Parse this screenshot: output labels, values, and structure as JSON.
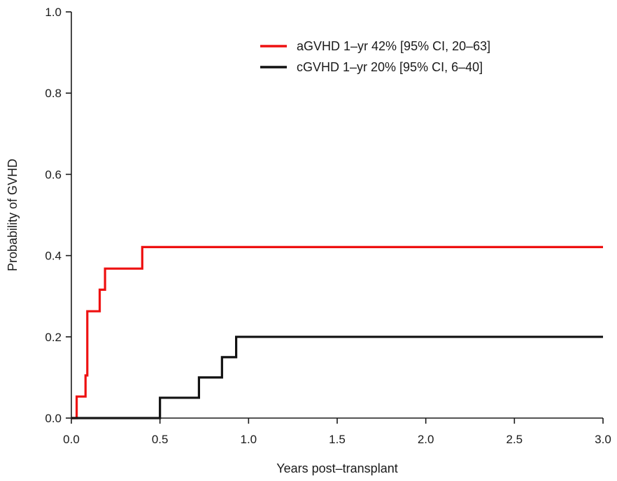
{
  "chart_data": {
    "type": "line",
    "title": "",
    "xlabel": "Years post–transplant",
    "ylabel": "Probability of GVHD",
    "xlim": [
      0,
      3
    ],
    "ylim": [
      0,
      1
    ],
    "x_ticks": [
      {
        "value": 0,
        "label": "0.0"
      },
      {
        "value": 0.5,
        "label": "0.5"
      },
      {
        "value": 1,
        "label": "1.0"
      },
      {
        "value": 1.5,
        "label": "1.5"
      },
      {
        "value": 2,
        "label": "2.0"
      },
      {
        "value": 2.5,
        "label": "2.5"
      },
      {
        "value": 3,
        "label": "3.0"
      }
    ],
    "y_ticks": [
      {
        "value": 0,
        "label": "0.0"
      },
      {
        "value": 0.2,
        "label": "0.2"
      },
      {
        "value": 0.4,
        "label": "0.4"
      },
      {
        "value": 0.6,
        "label": "0.6"
      },
      {
        "value": 0.8,
        "label": "0.8"
      },
      {
        "value": 1.0,
        "label": "1.0"
      }
    ],
    "grid": false,
    "legend_position": "top-right",
    "step": true,
    "series": [
      {
        "name": "aGVHD 1–yr 42% [95% CI, 20–63]",
        "color": "#ee1111",
        "x": [
          0.0,
          0.03,
          0.08,
          0.09,
          0.16,
          0.19,
          0.4,
          3.0
        ],
        "y": [
          0.0,
          0.053,
          0.105,
          0.263,
          0.316,
          0.368,
          0.421,
          0.421
        ]
      },
      {
        "name": "cGVHD 1–yr 20% [95% CI, 6–40]",
        "color": "#111111",
        "x": [
          0.0,
          0.5,
          0.72,
          0.85,
          0.93,
          3.0
        ],
        "y": [
          0.0,
          0.05,
          0.1,
          0.15,
          0.2,
          0.2
        ]
      }
    ]
  }
}
